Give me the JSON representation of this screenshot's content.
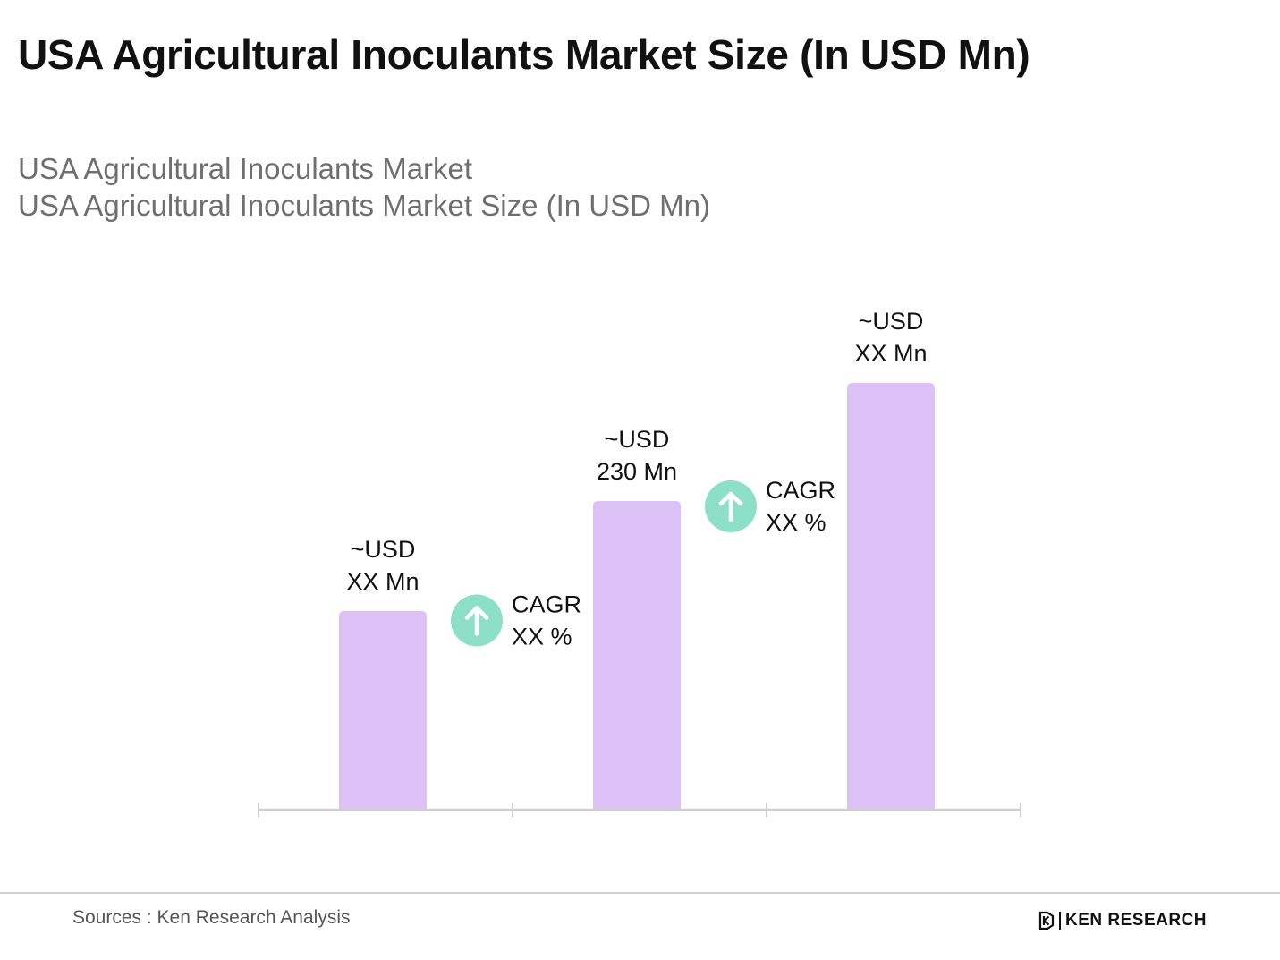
{
  "page": {
    "title": "USA Agricultural Inoculants Market Size (In USD Mn)",
    "subtitle_lines": [
      "USA Agricultural Inoculants Market",
      "USA Agricultural Inoculants Market Size (In USD Mn)"
    ]
  },
  "chart_data": {
    "type": "bar",
    "title": "USA Agricultural Inoculants Market Size (In USD Mn)",
    "xlabel": "",
    "ylabel": "",
    "categories": [
      "",
      "",
      ""
    ],
    "values": [
      148,
      230,
      318
    ],
    "value_labels": [
      [
        "~USD",
        "XX Mn"
      ],
      [
        "~USD",
        "230 Mn"
      ],
      [
        "~USD",
        "XX Mn"
      ]
    ],
    "annotations": [
      {
        "label": [
          "CAGR",
          "XX %"
        ],
        "icon": "arrow-up-icon",
        "between": [
          0,
          1
        ]
      },
      {
        "label": [
          "CAGR",
          "XX %"
        ],
        "icon": "arrow-up-icon",
        "between": [
          1,
          2
        ]
      }
    ],
    "ylim": [
      0,
      400
    ],
    "grid": false,
    "legend": "none",
    "colors": {
      "bar": "#dcc1f6",
      "cagr_badge": "#8de0c7",
      "axis": "#cfcfcf"
    }
  },
  "footer": {
    "source": "Sources : Ken Research Analysis",
    "brand": "KEN RESEARCH"
  }
}
